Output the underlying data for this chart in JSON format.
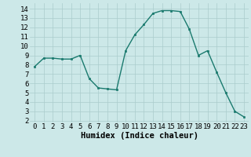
{
  "x": [
    0,
    1,
    2,
    3,
    4,
    5,
    6,
    7,
    8,
    9,
    10,
    11,
    12,
    13,
    14,
    15,
    16,
    17,
    18,
    19,
    20,
    21,
    22,
    23
  ],
  "y": [
    7.8,
    8.7,
    8.7,
    8.6,
    8.6,
    9.0,
    6.5,
    5.5,
    5.4,
    5.3,
    9.5,
    11.2,
    12.3,
    13.5,
    13.8,
    13.8,
    13.7,
    11.8,
    9.0,
    9.5,
    7.2,
    5.0,
    3.0,
    2.4
  ],
  "line_color": "#1a7a6e",
  "marker": "s",
  "marker_size": 2.0,
  "line_width": 1.0,
  "bg_color": "#cce8e8",
  "grid_color": "#aacccc",
  "xlabel": "Humidex (Indice chaleur)",
  "xlabel_fontsize": 7.5,
  "ylim": [
    1.8,
    14.6
  ],
  "xlim": [
    -0.5,
    23.5
  ],
  "yticks": [
    2,
    3,
    4,
    5,
    6,
    7,
    8,
    9,
    10,
    11,
    12,
    13,
    14
  ],
  "xtick_labels": [
    "0",
    "1",
    "2",
    "3",
    "4",
    "5",
    "6",
    "7",
    "8",
    "9",
    "10",
    "11",
    "12",
    "13",
    "14",
    "15",
    "16",
    "17",
    "18",
    "19",
    "20",
    "21",
    "22",
    "23"
  ],
  "tick_fontsize": 6.5
}
